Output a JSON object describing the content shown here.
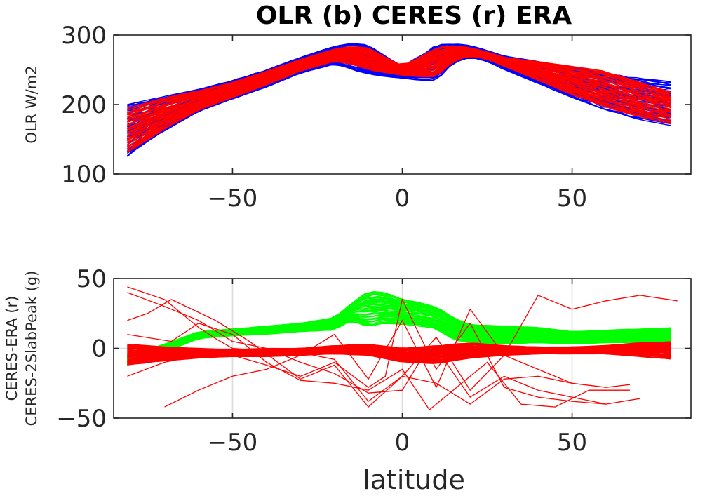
{
  "figure": {
    "title": "OLR (b) CERES (r) ERA",
    "xlabel": "latitude"
  },
  "chart_data": [
    {
      "type": "line",
      "title": "OLR (b) CERES (r) ERA",
      "xlabel": "",
      "ylabel": "OLR W/m2",
      "xlim": [
        -85,
        85
      ],
      "ylim": [
        100,
        300
      ],
      "xticks": [
        -50,
        0,
        50
      ],
      "yticks": [
        100,
        200,
        300
      ],
      "grid": false,
      "series": [
        {
          "color": "#0000ff",
          "description": "CERES OLR (ensemble envelope of many monthly profiles)",
          "x": [
            -81,
            -70,
            -60,
            -50,
            -40,
            -30,
            -20,
            -15,
            -10,
            -5,
            0,
            5,
            10,
            15,
            20,
            25,
            30,
            40,
            50,
            60,
            70,
            81
          ],
          "lower": [
            125,
            162,
            190,
            208,
            225,
            245,
            258,
            250,
            244,
            240,
            238,
            235,
            234,
            260,
            268,
            262,
            250,
            230,
            210,
            192,
            178,
            168
          ],
          "upper": [
            200,
            212,
            222,
            235,
            250,
            268,
            284,
            288,
            286,
            270,
            255,
            270,
            286,
            288,
            285,
            278,
            270,
            262,
            254,
            245,
            238,
            232
          ]
        },
        {
          "color": "#ff0000",
          "description": "ERA OLR (ensemble envelope of many monthly profiles)",
          "x": [
            -81,
            -70,
            -60,
            -50,
            -40,
            -30,
            -20,
            -15,
            -10,
            -5,
            0,
            5,
            10,
            15,
            20,
            25,
            30,
            40,
            50,
            60,
            70,
            81
          ],
          "lower": [
            130,
            165,
            192,
            210,
            228,
            248,
            262,
            258,
            250,
            246,
            242,
            240,
            240,
            262,
            270,
            265,
            255,
            235,
            214,
            196,
            182,
            170
          ],
          "upper": [
            195,
            210,
            220,
            232,
            248,
            265,
            280,
            284,
            282,
            268,
            256,
            268,
            282,
            285,
            282,
            276,
            268,
            262,
            255,
            248,
            232,
            215
          ]
        }
      ]
    },
    {
      "type": "line",
      "title": "",
      "xlabel": "latitude",
      "ylabel": [
        "CERES-ERA (r)",
        "CERES-2SlabPeak (g)"
      ],
      "xlim": [
        -85,
        85
      ],
      "ylim": [
        -50,
        50
      ],
      "xticks": [
        -50,
        0,
        50
      ],
      "yticks": [
        -50,
        0,
        50
      ],
      "grid": true,
      "series": [
        {
          "color": "#00ff00",
          "description": "CERES - 2SlabPeak (ensemble)",
          "x": [
            -81,
            -70,
            -60,
            -50,
            -40,
            -30,
            -20,
            -15,
            -10,
            -5,
            0,
            5,
            10,
            15,
            20,
            30,
            40,
            50,
            60,
            70,
            81
          ],
          "lower": [
            -12,
            -3,
            7,
            9,
            10,
            12,
            13,
            20,
            15,
            18,
            17,
            16,
            14,
            6,
            4,
            3,
            4,
            3,
            4,
            4,
            2
          ],
          "upper": [
            -5,
            3,
            12,
            14,
            16,
            18,
            22,
            32,
            41,
            40,
            35,
            33,
            30,
            22,
            17,
            16,
            15,
            12,
            13,
            14,
            15
          ]
        },
        {
          "color": "#ff0000",
          "description": "CERES - ERA, dense band",
          "x": [
            -81,
            -70,
            -60,
            -50,
            -40,
            -30,
            -20,
            -10,
            0,
            10,
            20,
            30,
            40,
            50,
            60,
            70,
            81
          ],
          "lower": [
            -12,
            -9,
            -7,
            -6,
            -6,
            -5,
            -4,
            -5,
            -10,
            -11,
            -7,
            -5,
            -4,
            -4,
            -4,
            -6,
            -8
          ],
          "upper": [
            3,
            1,
            0,
            -1,
            0,
            0,
            2,
            3,
            0,
            2,
            4,
            2,
            1,
            1,
            2,
            4,
            5
          ]
        },
        {
          "color": "#ff0000",
          "description": "CERES - ERA, outlier profiles",
          "lines": [
            {
              "x": [
                -81,
                -70,
                -60,
                -55,
                -50,
                -40,
                -30,
                -20,
                -10,
                0,
                10,
                20,
                30,
                40,
                50,
                60,
                70,
                81
              ],
              "y": [
                44,
                35,
                15,
                7,
                0,
                -2,
                -3,
                -8,
                -38,
                -20,
                8,
                -30,
                -5,
                38,
                28,
                34,
                38,
                34
              ]
            },
            {
              "x": [
                -81,
                -70,
                -60,
                -50,
                -40,
                -30,
                -20,
                -10,
                0,
                5,
                10,
                20,
                30,
                40,
                50,
                60
              ],
              "y": [
                40,
                30,
                20,
                5,
                0,
                -10,
                -18,
                -32,
                -30,
                -10,
                0,
                -35,
                -20,
                -30,
                -35,
                -40
              ]
            },
            {
              "x": [
                -81,
                -75,
                -68,
                -55,
                -45,
                -30,
                -20,
                -10,
                0,
                10,
                20,
                30,
                40,
                50,
                60,
                67
              ],
              "y": [
                20,
                25,
                35,
                20,
                5,
                -22,
                -12,
                -42,
                -20,
                -25,
                -40,
                -22,
                -20,
                -25,
                -28,
                -26
              ]
            },
            {
              "x": [
                -81,
                -68,
                -60,
                -50,
                -40,
                -30,
                -20,
                -10,
                0,
                8,
                15,
                25,
                35,
                45,
                55,
                67
              ],
              "y": [
                10,
                5,
                18,
                10,
                -10,
                -23,
                -25,
                -30,
                -15,
                -44,
                -30,
                -10,
                -40,
                -42,
                -30,
                -30
              ]
            },
            {
              "x": [
                -81,
                -70,
                -60,
                -50,
                -40,
                -30,
                -20,
                -10,
                -5,
                0,
                10,
                20,
                30,
                40,
                50,
                60,
                70
              ],
              "y": [
                -20,
                -10,
                -5,
                -5,
                -12,
                -20,
                -10,
                -28,
                -20,
                35,
                -15,
                18,
                -28,
                -35,
                -38,
                -40,
                -36
              ]
            },
            {
              "x": [
                -70,
                -60,
                -50,
                -40,
                -30,
                -20,
                -10,
                0,
                10,
                20,
                30,
                40,
                50
              ],
              "y": [
                -42,
                -30,
                -20,
                -15,
                -5,
                10,
                -22,
                20,
                -28,
                28,
                -5,
                -15,
                -25
              ]
            }
          ]
        }
      ]
    }
  ]
}
